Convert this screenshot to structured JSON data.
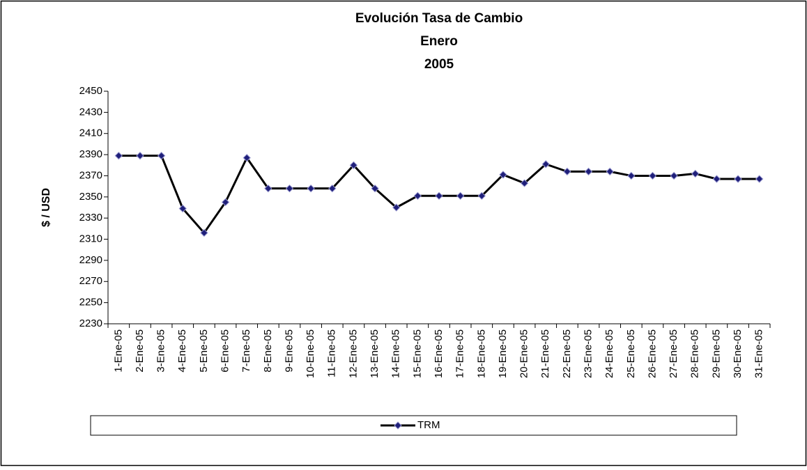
{
  "chart_data": {
    "type": "line",
    "title": [
      "Evolución Tasa de Cambio",
      "Enero",
      "2005"
    ],
    "ylabel": "$ / USD",
    "categories": [
      "1-Ene-05",
      "2-Ene-05",
      "3-Ene-05",
      "4-Ene-05",
      "5-Ene-05",
      "6-Ene-05",
      "7-Ene-05",
      "8-Ene-05",
      "9-Ene-05",
      "10-Ene-05",
      "11-Ene-05",
      "12-Ene-05",
      "13-Ene-05",
      "14-Ene-05",
      "15-Ene-05",
      "16-Ene-05",
      "17-Ene-05",
      "18-Ene-05",
      "19-Ene-05",
      "20-Ene-05",
      "21-Ene-05",
      "22-Ene-05",
      "23-Ene-05",
      "24-Ene-05",
      "25-Ene-05",
      "26-Ene-05",
      "27-Ene-05",
      "28-Ene-05",
      "29-Ene-05",
      "30-Ene-05",
      "31-Ene-05"
    ],
    "series": [
      {
        "name": "TRM",
        "color": "#000000",
        "marker_color": "#1f1f7a",
        "values": [
          2389,
          2389,
          2389,
          2339,
          2316,
          2345,
          2387,
          2358,
          2358,
          2358,
          2358,
          2380,
          2358,
          2340,
          2351,
          2351,
          2351,
          2351,
          2371,
          2363,
          2381,
          2374,
          2374,
          2374,
          2370,
          2370,
          2370,
          2372,
          2367,
          2367,
          2367
        ]
      }
    ],
    "ylim": [
      2230,
      2450
    ],
    "yticks": [
      2230,
      2250,
      2270,
      2290,
      2310,
      2330,
      2350,
      2370,
      2390,
      2410,
      2430,
      2450
    ],
    "grid": false,
    "legend": "bottom"
  }
}
